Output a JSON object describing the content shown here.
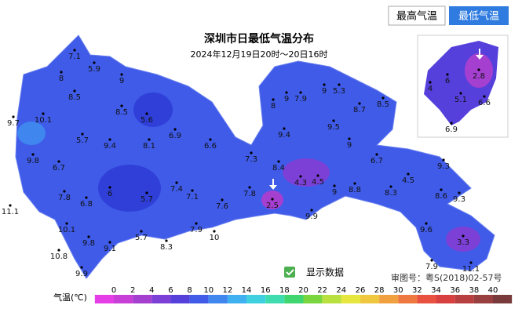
{
  "buttons": [
    "最高气温",
    "最低气温"
  ],
  "title": "深圳市日最低气温分布",
  "subtitle": "2024年12月19日20时～20日16时",
  "stations": [
    7.1,
    5.9,
    8,
    9,
    8.5,
    8.5,
    5.6,
    9.7,
    10.1,
    5.7,
    9.4,
    8.1,
    6.9,
    6.6,
    9.8,
    6.7,
    7.3,
    8.4,
    9.4,
    8,
    9,
    7.9,
    9,
    5.3,
    8.7,
    8.5,
    9.5,
    9,
    6.7,
    9.3,
    4.3,
    4.5,
    9,
    8.8,
    8.3,
    4.5,
    8.6,
    9.3,
    6,
    5.7,
    7.4,
    7.1,
    7.6,
    7.8,
    2.5,
    9.9,
    11.1,
    7.8,
    6.8,
    10.1,
    9.8,
    9.1,
    5.7,
    7.9,
    10,
    8.3,
    10.8,
    9.9,
    9.6,
    3.3,
    7.9,
    11.1
  ],
  "inset_stations": [
    4,
    6,
    2.8,
    5.1,
    6.6,
    6.9
  ],
  "show_data": "显示数据",
  "approval": "审图号：粤S(2018)02-57号",
  "legend": {
    "label": "气温(℃)",
    "ticks": [
      0,
      2,
      4,
      6,
      8,
      10,
      12,
      14,
      16,
      18,
      20,
      22,
      24,
      26,
      28,
      30,
      32,
      34,
      36,
      38,
      40
    ],
    "colors": [
      "#e63ee6",
      "#c83fd8",
      "#a53fd0",
      "#7d40d6",
      "#5640dc",
      "#3f5be8",
      "#3f86ee",
      "#3fb0f0",
      "#3fd0e0",
      "#3fdcb0",
      "#3fd670",
      "#7ad63f",
      "#b8e03f",
      "#e6e63f",
      "#f0c83f",
      "#f0a03f",
      "#ee783f",
      "#e8503f",
      "#d83f3f",
      "#b83f3f",
      "#983f3f",
      "#783a3a"
    ]
  }
}
